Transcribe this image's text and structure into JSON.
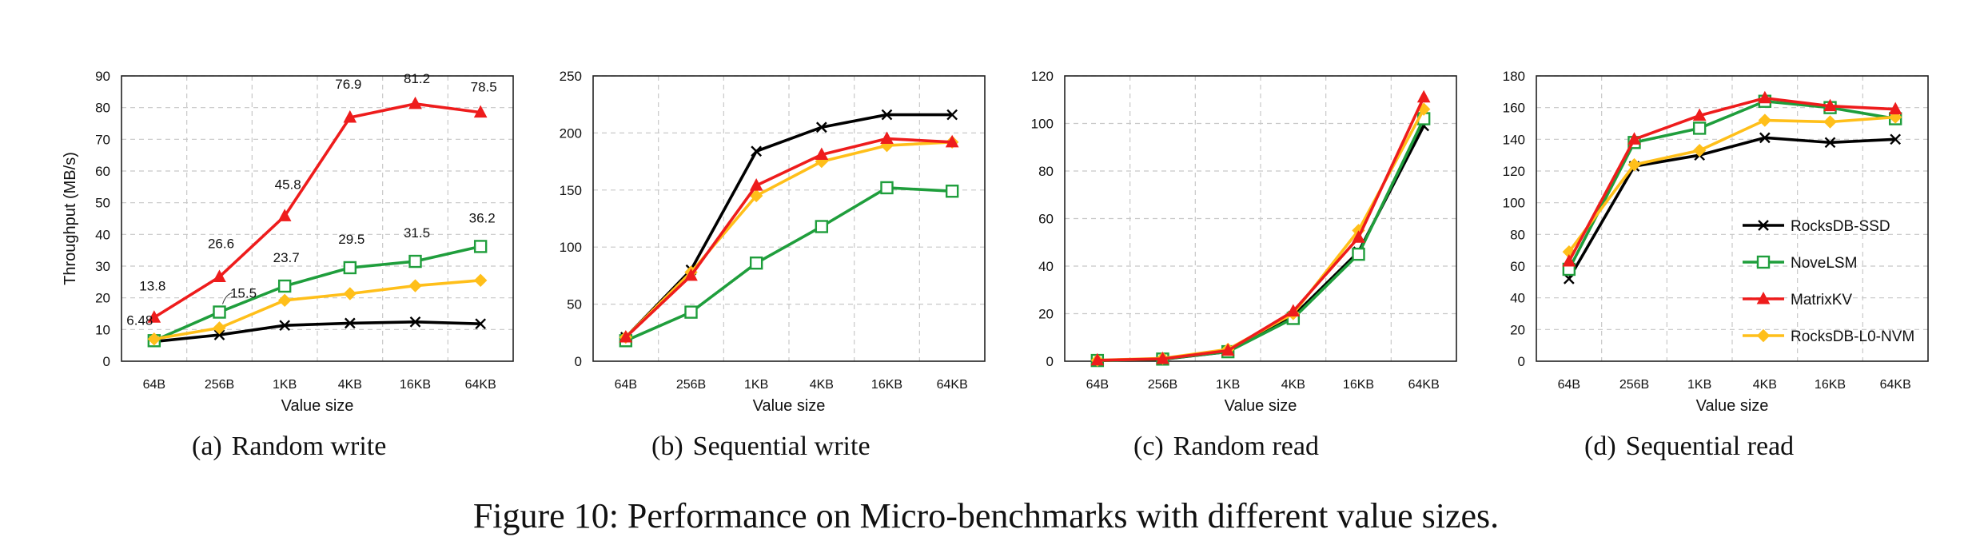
{
  "figure_caption": "Figure 10: Performance on Micro-benchmarks with different value sizes.",
  "legend_series": [
    "RocksDB-SSD",
    "NoveLSM",
    "MatrixKV",
    "RocksDB-L0-NVM"
  ],
  "series_colors": {
    "RocksDB-SSD": "#000000",
    "NoveLSM": "#1f9e3c",
    "MatrixKV": "#ee1c1c",
    "RocksDB-L0-NVM": "#ffbf1a"
  },
  "panels": [
    {
      "letter": "(a)",
      "title": "Random write"
    },
    {
      "letter": "(b)",
      "title": "Sequential write"
    },
    {
      "letter": "(c)",
      "title": "Random read"
    },
    {
      "letter": "(d)",
      "title": "Sequential read"
    }
  ],
  "chart_data": [
    {
      "type": "line",
      "title": "(a) Random write",
      "xlabel": "Value size",
      "ylabel": "Throughput (MB/s)",
      "categories": [
        "64B",
        "256B",
        "1KB",
        "4KB",
        "16KB",
        "64KB"
      ],
      "ylim": [
        0,
        90
      ],
      "yticks": [
        "0",
        "10",
        "20",
        "30",
        "40",
        "50",
        "60",
        "70",
        "80",
        "90"
      ],
      "grid": true,
      "legend": "none",
      "series": [
        {
          "name": "RocksDB-SSD",
          "values": [
            6.2,
            8.3,
            11.3,
            12.0,
            12.4,
            11.8
          ]
        },
        {
          "name": "NoveLSM",
          "values": [
            6.48,
            15.5,
            23.7,
            29.5,
            31.5,
            36.2
          ]
        },
        {
          "name": "MatrixKV",
          "values": [
            13.8,
            26.6,
            45.8,
            76.9,
            81.2,
            78.5
          ]
        },
        {
          "name": "RocksDB-L0-NVM",
          "values": [
            7.0,
            10.5,
            19.2,
            21.3,
            23.8,
            25.5
          ]
        }
      ],
      "data_labels": {
        "MatrixKV": [
          "13.8",
          "26.6",
          "45.8",
          "76.9",
          "81.2",
          "78.5"
        ],
        "NoveLSM": [
          "6.48",
          "15.5",
          "23.7",
          "29.5",
          "31.5",
          "36.2"
        ]
      }
    },
    {
      "type": "line",
      "title": "(b) Sequential write",
      "xlabel": "Value size",
      "ylabel": "",
      "categories": [
        "64B",
        "256B",
        "1KB",
        "4KB",
        "16KB",
        "64KB"
      ],
      "ylim": [
        0,
        250
      ],
      "yticks": [
        "0",
        "50",
        "100",
        "150",
        "200",
        "250"
      ],
      "grid": true,
      "legend": "none",
      "series": [
        {
          "name": "RocksDB-SSD",
          "values": [
            21,
            80,
            184,
            205,
            216,
            216
          ]
        },
        {
          "name": "NoveLSM",
          "values": [
            18,
            43,
            86,
            118,
            152,
            149
          ]
        },
        {
          "name": "MatrixKV",
          "values": [
            21,
            75,
            154,
            181,
            195,
            192
          ]
        },
        {
          "name": "RocksDB-L0-NVM",
          "values": [
            21,
            78,
            145,
            175,
            189,
            192
          ]
        }
      ]
    },
    {
      "type": "line",
      "title": "(c) Random read",
      "xlabel": "Value size",
      "ylabel": "",
      "categories": [
        "64B",
        "256B",
        "1KB",
        "4KB",
        "16KB",
        "64KB"
      ],
      "ylim": [
        0,
        120
      ],
      "yticks": [
        "0",
        "20",
        "40",
        "60",
        "80",
        "100",
        "120"
      ],
      "grid": true,
      "legend": "none",
      "series": [
        {
          "name": "RocksDB-SSD",
          "values": [
            0.3,
            0.8,
            4.0,
            19.0,
            46.0,
            99.0
          ]
        },
        {
          "name": "NoveLSM",
          "values": [
            0.3,
            0.9,
            4.0,
            18.0,
            45.0,
            102.0
          ]
        },
        {
          "name": "MatrixKV",
          "values": [
            0.4,
            1.0,
            4.5,
            21.0,
            52.0,
            111.0
          ]
        },
        {
          "name": "RocksDB-L0-NVM",
          "values": [
            0.4,
            1.2,
            5.0,
            20.0,
            55.0,
            106.0
          ]
        }
      ]
    },
    {
      "type": "line",
      "title": "(d) Sequential read",
      "xlabel": "Value size",
      "ylabel": "",
      "categories": [
        "64B",
        "256B",
        "1KB",
        "4KB",
        "16KB",
        "64KB"
      ],
      "ylim": [
        0,
        180
      ],
      "yticks": [
        "0",
        "20",
        "40",
        "60",
        "80",
        "100",
        "120",
        "140",
        "160",
        "180"
      ],
      "grid": true,
      "legend": "inside right",
      "series": [
        {
          "name": "RocksDB-SSD",
          "values": [
            52,
            123,
            130,
            141,
            138,
            140
          ]
        },
        {
          "name": "NoveLSM",
          "values": [
            58,
            138,
            147,
            164,
            160,
            153
          ]
        },
        {
          "name": "MatrixKV",
          "values": [
            63,
            140,
            155,
            166,
            161,
            159
          ]
        },
        {
          "name": "RocksDB-L0-NVM",
          "values": [
            69,
            124,
            133,
            152,
            151,
            154
          ]
        }
      ]
    }
  ]
}
